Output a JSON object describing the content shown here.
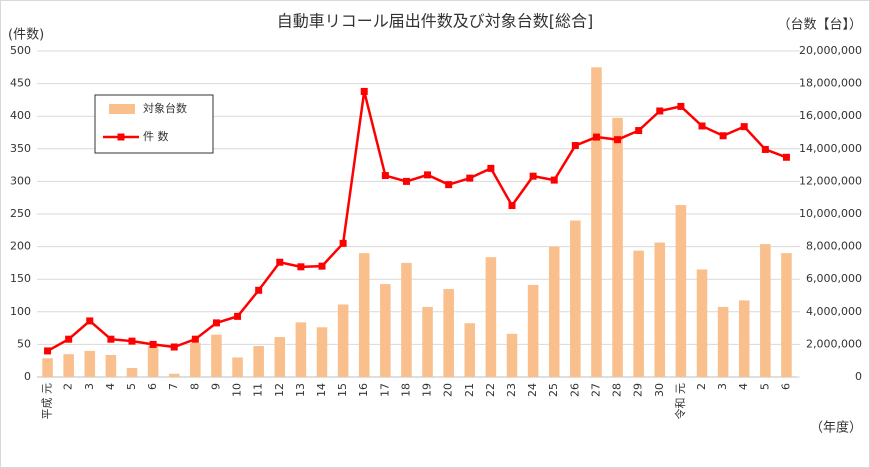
{
  "chart_data": {
    "type": "combo",
    "title": "自動車リコール届出件数及び対象台数[総合]",
    "y_label": "(件数)",
    "y2_label": "（台数【台】）",
    "x_label": "（年度）",
    "categories": [
      "平成 元",
      "2",
      "3",
      "4",
      "5",
      "6",
      "7",
      "8",
      "9",
      "10",
      "11",
      "12",
      "13",
      "14",
      "15",
      "16",
      "17",
      "18",
      "19",
      "20",
      "21",
      "22",
      "23",
      "24",
      "25",
      "26",
      "27",
      "28",
      "29",
      "30",
      "令和 元",
      "2",
      "3",
      "4",
      "5",
      "6"
    ],
    "series": [
      {
        "name": "対象台数",
        "type": "bar",
        "axis": "y2",
        "color": "#f9c08e",
        "values": [
          1150000,
          1400000,
          1600000,
          1350000,
          550000,
          1900000,
          200000,
          2100000,
          2600000,
          1200000,
          1900000,
          2450000,
          3350000,
          3050000,
          4450000,
          7600000,
          5700000,
          7000000,
          4300000,
          5400000,
          3300000,
          7350000,
          2650000,
          5650000,
          8000000,
          9600000,
          19000000,
          15900000,
          7750000,
          8250000,
          10550000,
          6600000,
          4300000,
          4700000,
          8150000,
          7600000
        ]
      },
      {
        "name": "件 数",
        "type": "line",
        "color": "#ff0000",
        "values": [
          40,
          58,
          86,
          58,
          55,
          50,
          46,
          58,
          83,
          93,
          133,
          176,
          169,
          170,
          205,
          438,
          309,
          300,
          310,
          295,
          305,
          320,
          263,
          308,
          302,
          355,
          368,
          364,
          378,
          408,
          415,
          385,
          370,
          384,
          349,
          337
        ]
      }
    ],
    "ylim": [
      0,
      500
    ],
    "yticks": [
      0,
      50,
      100,
      150,
      200,
      250,
      300,
      350,
      400,
      450,
      500
    ],
    "y2lim": [
      0,
      20000000
    ],
    "y2ticks": [
      {
        "value": 0,
        "label": "0"
      },
      {
        "value": 2000000,
        "label": "2,000,000"
      },
      {
        "value": 4000000,
        "label": "4,000,000"
      },
      {
        "value": 6000000,
        "label": "6,000,000"
      },
      {
        "value": 8000000,
        "label": "8,000,000"
      },
      {
        "value": 10000000,
        "label": "10,000,000"
      },
      {
        "value": 12000000,
        "label": "12,000,000"
      },
      {
        "value": 14000000,
        "label": "14,000,000"
      },
      {
        "value": 16000000,
        "label": "16,000,000"
      },
      {
        "value": 18000000,
        "label": "18,000,000"
      },
      {
        "value": 20000000,
        "label": "20,000,000"
      }
    ],
    "grid": true,
    "legend": "top-left"
  }
}
